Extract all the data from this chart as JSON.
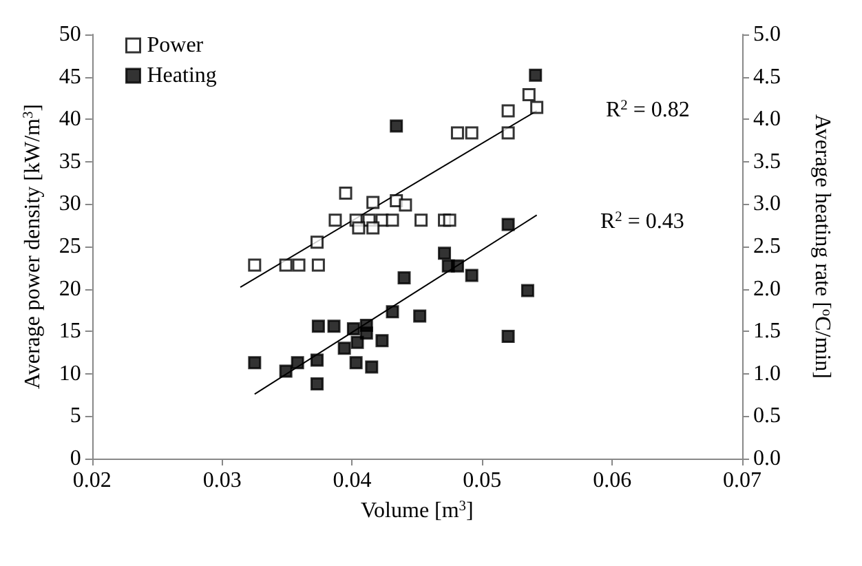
{
  "chart_data": {
    "type": "scatter",
    "xlabel": "Volume [m$^{3}$]",
    "ylabel": "Average power density [kW/m$^{3}$]",
    "y2label": "Average heating rate [$^{o}$C/min]",
    "series": [
      {
        "name": "Power",
        "color": "#ffffff",
        "x": [
          0.0325,
          0.0349,
          0.0359,
          0.0374,
          0.0373,
          0.0387,
          0.0403,
          0.0413,
          0.0423,
          0.0431,
          0.0453,
          0.0471,
          0.0475,
          0.0405,
          0.0416,
          0.0416,
          0.0434,
          0.0441,
          0.0395,
          0.0481,
          0.0492,
          0.052,
          0.052,
          0.0536,
          0.0542
        ],
        "values": [
          22.8,
          22.8,
          22.8,
          22.8,
          25.5,
          28.1,
          28.1,
          28.1,
          28.1,
          28.1,
          28.1,
          28.1,
          28.1,
          27.2,
          27.2,
          30.2,
          30.4,
          29.9,
          31.3,
          38.4,
          38.4,
          41.0,
          38.4,
          42.9,
          41.4
        ]
      },
      {
        "name": "Heating",
        "color": "#000000",
        "axis": "y2",
        "x": [
          0.0434,
          0.0541,
          0.052,
          0.0471,
          0.0474,
          0.0481,
          0.0492,
          0.044,
          0.0535,
          0.0431,
          0.0452,
          0.0374,
          0.0386,
          0.0401,
          0.0411,
          0.0411,
          0.0423,
          0.0404,
          0.0394,
          0.052,
          0.0325,
          0.0358,
          0.0373,
          0.0349,
          0.0403,
          0.0415,
          0.0373
        ],
        "values": [
          3.92,
          4.52,
          2.76,
          2.42,
          2.27,
          2.27,
          2.16,
          2.13,
          1.98,
          1.73,
          1.68,
          1.56,
          1.56,
          1.53,
          1.57,
          1.48,
          1.39,
          1.37,
          1.3,
          1.44,
          1.13,
          1.13,
          1.16,
          1.03,
          1.13,
          1.08,
          0.88
        ]
      },
      {
        "type": "line",
        "color": "#000000",
        "marker": "none",
        "x": [
          0.0314,
          0.0542
        ],
        "values": [
          20.2,
          41.0
        ]
      },
      {
        "type": "line",
        "color": "#000000",
        "marker": "none",
        "axis": "y2",
        "x": [
          0.0325,
          0.0542
        ],
        "values": [
          0.76,
          2.87
        ]
      }
    ],
    "xlim": [
      0.02,
      0.07
    ],
    "xticks": [
      0.02,
      0.03,
      0.04,
      0.05,
      0.06,
      0.07
    ],
    "ylim": [
      0,
      50
    ],
    "yticks": [
      0,
      5,
      10,
      15,
      20,
      25,
      30,
      35,
      40,
      45,
      50
    ],
    "y2lim": [
      0,
      5
    ],
    "y2ticks": [
      {
        "value": 0,
        "label": "0.0"
      },
      {
        "value": 0.5,
        "label": "0.5"
      },
      {
        "value": 1,
        "label": "1.0"
      },
      {
        "value": 1.5,
        "label": "1.5"
      },
      {
        "value": 2,
        "label": "2.0"
      },
      {
        "value": 2.5,
        "label": "2.5"
      },
      {
        "value": 3,
        "label": "3.0"
      },
      {
        "value": 3.5,
        "label": "3.5"
      },
      {
        "value": 4,
        "label": "4.0"
      },
      {
        "value": 4.5,
        "label": "4.5"
      },
      {
        "value": 5,
        "label": "5.0"
      }
    ],
    "annotations": [
      "R$^{2}$ = 0.82",
      "R$^{2}$ = 0.43"
    ],
    "marker": "square",
    "grid": false,
    "legend": "top left"
  }
}
